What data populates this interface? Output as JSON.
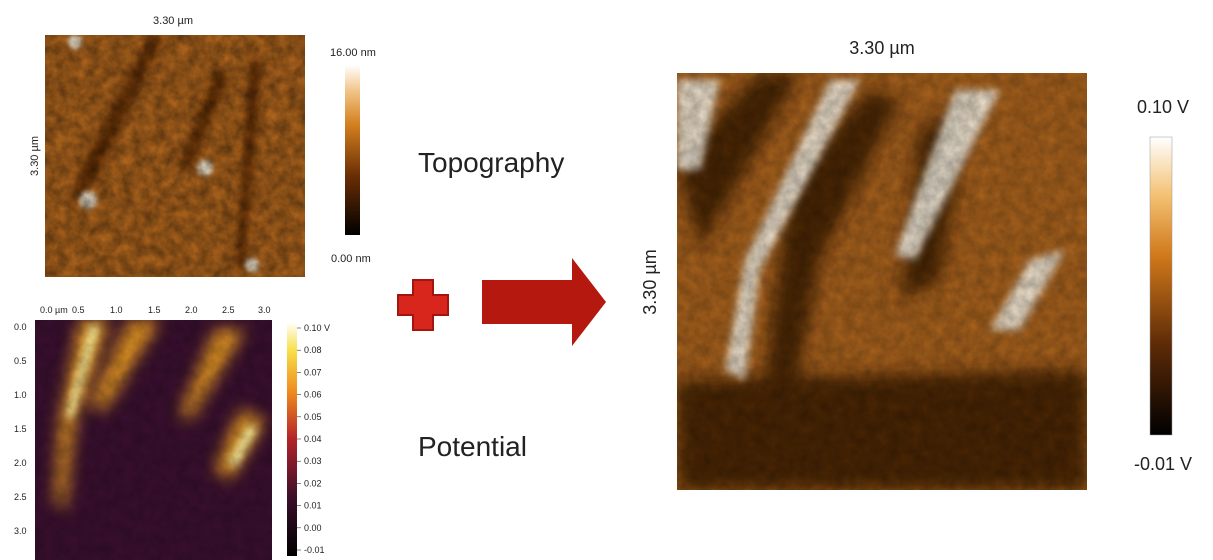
{
  "topography": {
    "width_label": "3.30 µm",
    "height_label": "3.30 µm",
    "scale_max": "16.00 nm",
    "scale_min": "0.00 nm",
    "caption": "Topography"
  },
  "potential": {
    "x_ticks": [
      "0.0 µm",
      "0.5",
      "1.0",
      "1.5",
      "2.0",
      "2.5",
      "3.0"
    ],
    "y_ticks": [
      "0.0",
      "0.5",
      "1.0",
      "1.5",
      "2.0",
      "2.5",
      "3.0"
    ],
    "scale_ticks": [
      "0.10 V",
      "0.08",
      "0.07",
      "0.06",
      "0.05",
      "0.04",
      "0.03",
      "0.02",
      "0.01",
      "0.00",
      "-0.01"
    ],
    "caption": "Potential"
  },
  "combined": {
    "width_label": "3.30 µm",
    "height_label": "3.30 µm",
    "scale_max": "0.10 V",
    "scale_min": "-0.01 V"
  }
}
